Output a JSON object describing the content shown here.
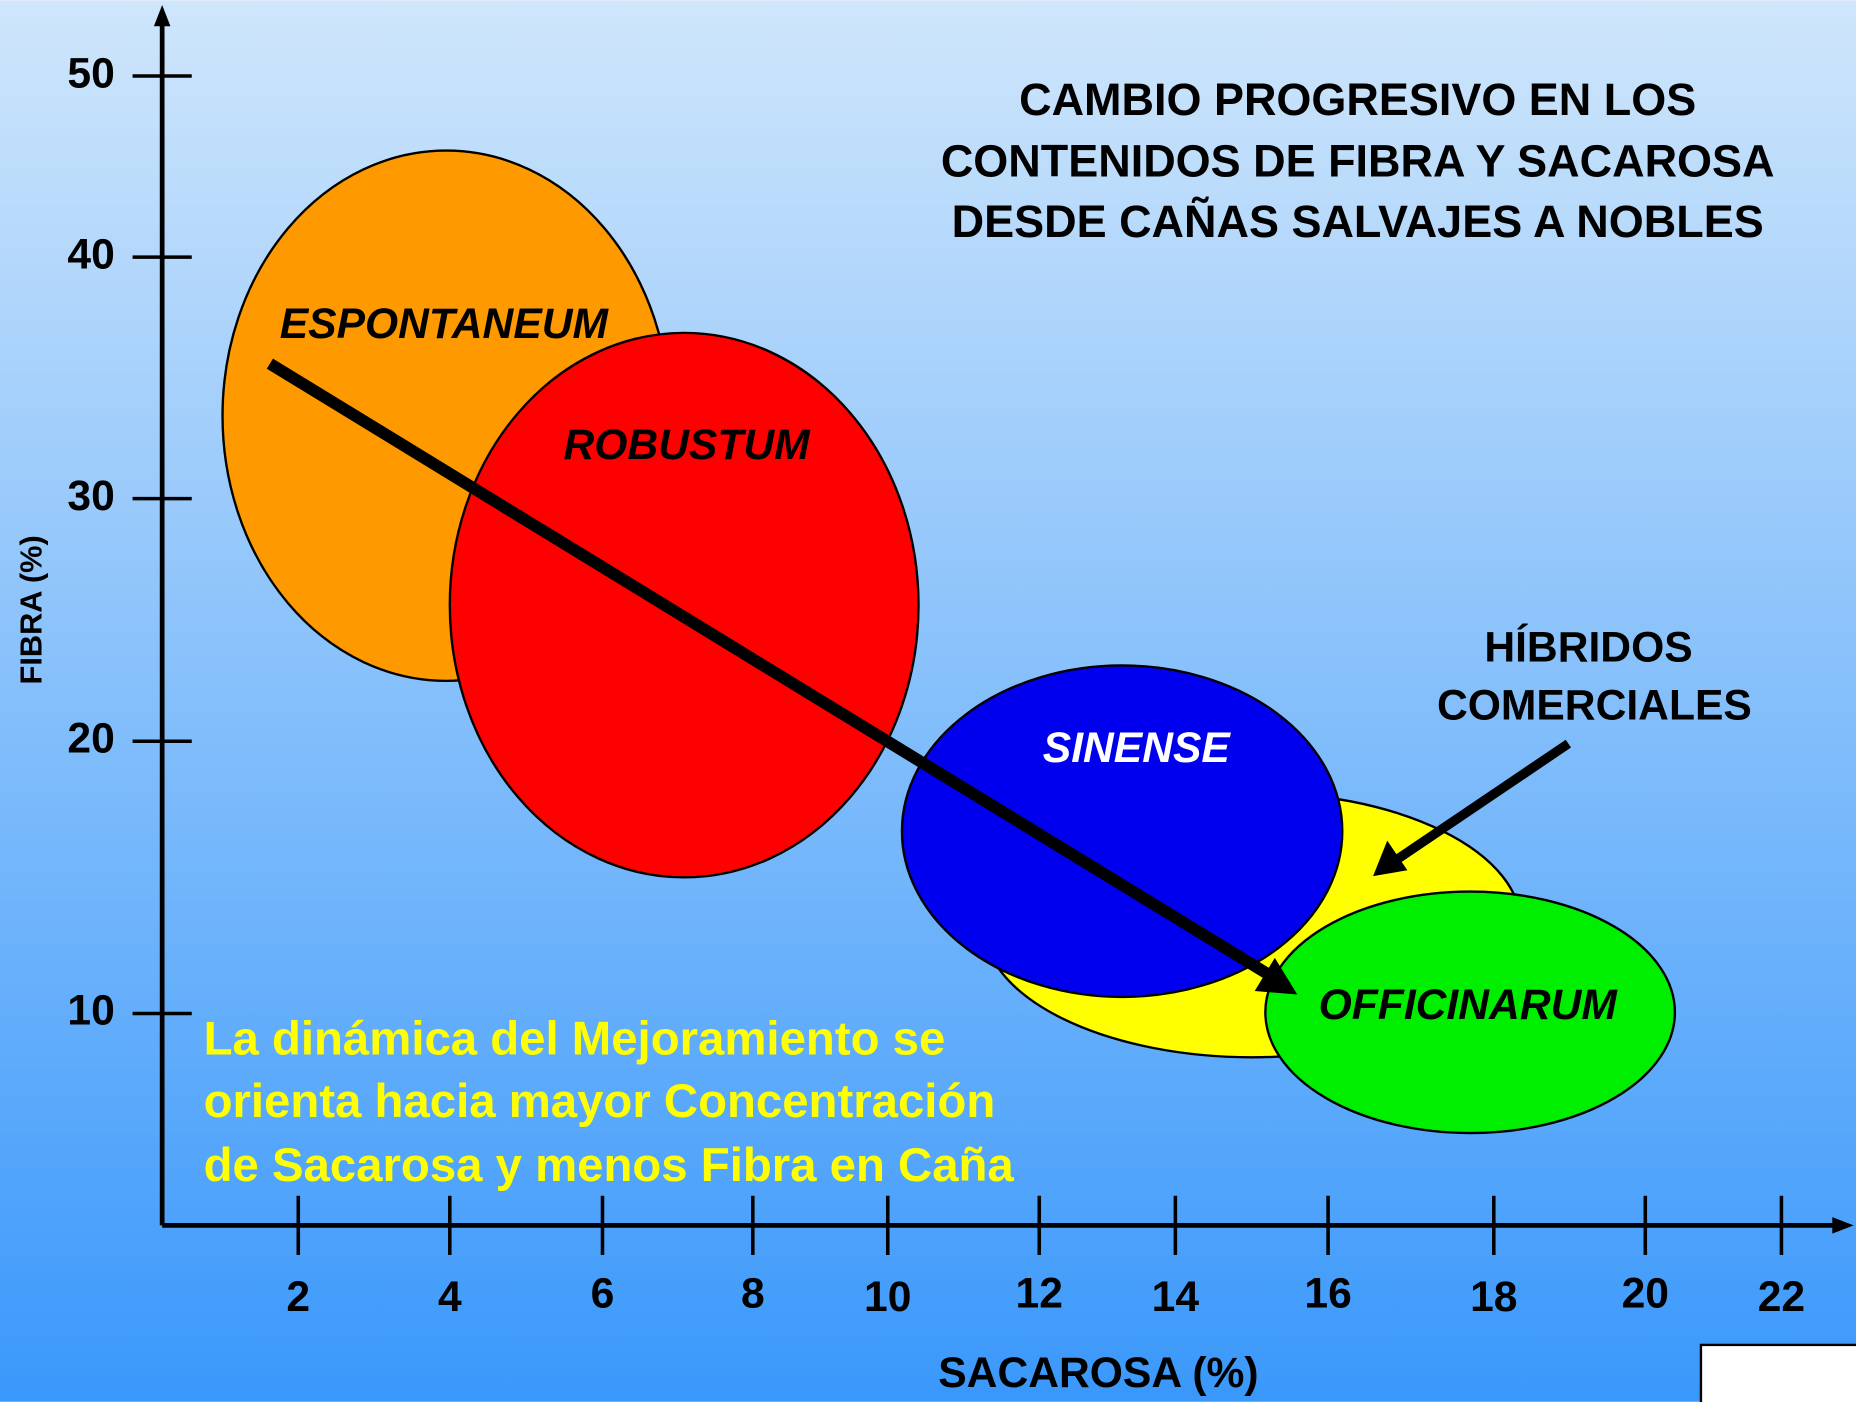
{
  "title": [
    "CAMBIO PROGRESIVO EN LOS",
    "CONTENIDOS DE FIBRA Y SACAROSA",
    "DESDE CAÑAS SALVAJES A NOBLES"
  ],
  "y_axis": {
    "label": "FIBRA (%)",
    "ticks": [
      50,
      40,
      30,
      20,
      10
    ]
  },
  "x_axis": {
    "label": "SACAROSA (%)",
    "ticks": [
      2,
      4,
      6,
      8,
      10,
      12,
      14,
      16,
      18,
      20,
      22
    ]
  },
  "groups": [
    "ESPONTANEUM",
    "ROBUSTUM",
    "SINENSE",
    "OFFICINARUM"
  ],
  "annotation": [
    "HÍBRIDOS",
    "COMERCIALES"
  ],
  "note": [
    "La dinámica del Mejoramiento se",
    "orienta hacia mayor Concentración",
    "de Sacarosa y menos Fibra en Caña"
  ]
}
